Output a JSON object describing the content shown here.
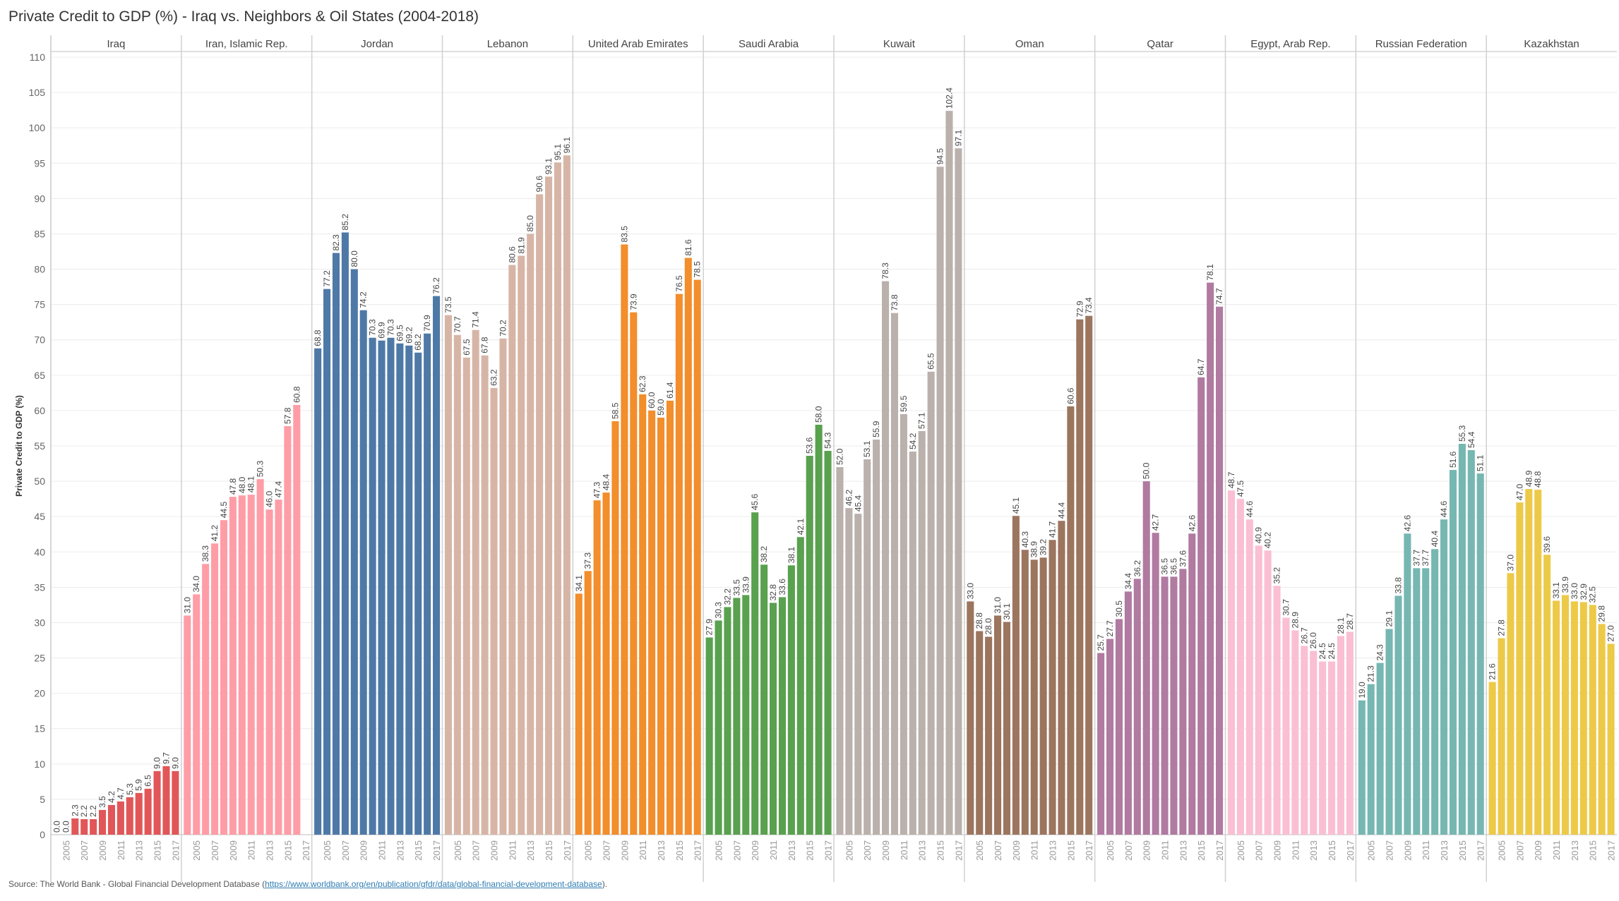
{
  "chart_data": {
    "type": "bar",
    "title": "Private Credit to GDP (%) - Iraq vs. Neighbors & Oil States (2004-2018)",
    "xlabel": "",
    "ylabel": "Private Credit to GDP (%)",
    "ylim": [
      0,
      110
    ],
    "yticks": [
      0,
      5,
      10,
      15,
      20,
      25,
      30,
      35,
      40,
      45,
      50,
      55,
      60,
      65,
      70,
      75,
      80,
      85,
      90,
      95,
      100,
      105,
      110
    ],
    "grid": true,
    "legend": "none (panel headers)",
    "years": [
      2004,
      2005,
      2006,
      2007,
      2008,
      2009,
      2010,
      2011,
      2012,
      2013,
      2014,
      2015,
      2016,
      2017
    ],
    "x_tick_labels": [
      "2005",
      "2007",
      "2009",
      "2011",
      "2013",
      "2015",
      "2017"
    ],
    "series": [
      {
        "name": "Iraq",
        "color": "#e15759",
        "values": [
          0.0,
          0.0,
          2.3,
          2.2,
          2.2,
          3.5,
          4.2,
          4.7,
          5.3,
          5.9,
          6.5,
          9.0,
          9.7,
          9.0
        ]
      },
      {
        "name": "Iran, Islamic Rep.",
        "color": "#ff9da7",
        "values": [
          31.0,
          34.0,
          38.3,
          41.2,
          44.5,
          47.8,
          48.0,
          48.1,
          50.3,
          46.0,
          47.4,
          57.8,
          60.8,
          null
        ]
      },
      {
        "name": "Jordan",
        "color": "#4e79a7",
        "values": [
          68.8,
          77.2,
          82.3,
          85.2,
          80.0,
          74.2,
          70.3,
          69.9,
          70.3,
          69.5,
          69.2,
          68.2,
          70.9,
          76.2
        ]
      },
      {
        "name": "Lebanon",
        "color": "#d7b5a6",
        "values": [
          73.5,
          70.7,
          67.5,
          71.4,
          67.8,
          63.2,
          70.2,
          80.6,
          81.9,
          85.0,
          90.6,
          93.1,
          95.1,
          96.1
        ]
      },
      {
        "name": "United Arab Emirates",
        "color": "#f28e2b",
        "values": [
          34.1,
          37.3,
          47.3,
          48.4,
          58.5,
          83.5,
          73.9,
          62.3,
          60.0,
          59.0,
          61.4,
          76.5,
          81.6,
          78.5
        ]
      },
      {
        "name": "Saudi Arabia",
        "color": "#59a14f",
        "values": [
          27.9,
          30.3,
          32.2,
          33.5,
          33.9,
          45.6,
          38.2,
          32.8,
          33.6,
          38.1,
          42.1,
          53.6,
          58.0,
          54.3
        ]
      },
      {
        "name": "Kuwait",
        "color": "#bab0ac",
        "values": [
          52.0,
          46.2,
          45.4,
          53.1,
          55.9,
          78.3,
          73.8,
          59.5,
          54.2,
          57.1,
          65.5,
          94.5,
          102.4,
          97.1
        ]
      },
      {
        "name": "Oman",
        "color": "#9c755f",
        "values": [
          33.0,
          28.8,
          28.0,
          31.0,
          30.1,
          45.1,
          40.3,
          38.9,
          39.2,
          41.7,
          44.4,
          60.6,
          72.9,
          73.4
        ]
      },
      {
        "name": "Qatar",
        "color": "#b07aa1",
        "values": [
          25.7,
          27.7,
          30.5,
          34.4,
          36.2,
          50.0,
          42.7,
          36.5,
          36.5,
          37.6,
          42.6,
          64.7,
          78.1,
          74.7
        ]
      },
      {
        "name": "Egypt, Arab Rep.",
        "color": "#fabfd2",
        "values": [
          48.7,
          47.5,
          44.6,
          40.9,
          40.2,
          35.2,
          30.7,
          28.9,
          26.7,
          26.0,
          24.5,
          24.5,
          28.1,
          28.7
        ]
      },
      {
        "name": "Russian Federation",
        "color": "#76b7b2",
        "values": [
          19.0,
          21.3,
          24.3,
          29.1,
          33.8,
          42.6,
          37.7,
          37.7,
          40.4,
          44.6,
          51.6,
          55.3,
          54.4,
          51.1
        ]
      },
      {
        "name": "Kazakhstan",
        "color": "#edc948",
        "values": [
          21.6,
          27.8,
          37.0,
          47.0,
          48.9,
          48.8,
          39.6,
          33.1,
          33.9,
          33.0,
          32.9,
          32.5,
          29.8,
          27.0
        ]
      }
    ]
  },
  "source": {
    "prefix": "Source: The World Bank - Global Financial Development Database (",
    "link_text": "https://www.worldbank.org/en/publication/gfdr/data/global-financial-development-database",
    "suffix": ")."
  }
}
